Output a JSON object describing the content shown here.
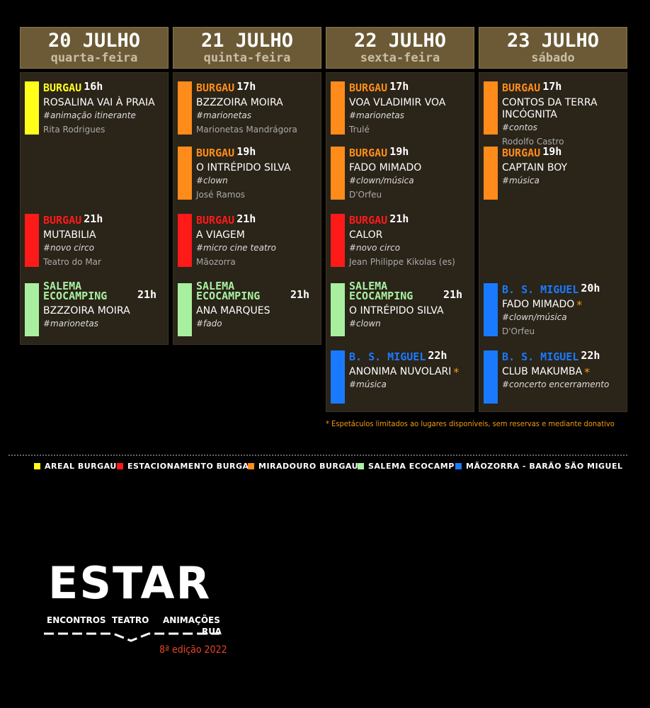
{
  "days": [
    {
      "date": "20 JULHO",
      "weekday": "quarta-feira",
      "events": [
        {
          "place": "BURGAU",
          "time": "16h",
          "title": "ROSALINA VAI À PRAIA",
          "tag": "#animação itinerante",
          "artist": "Rita Rodrigues",
          "color": "#ffff1a"
        },
        {
          "place": "BURGAU",
          "time": "21h",
          "title": "MUTABILIA",
          "tag": "#novo circo",
          "artist": "Teatro do Mar",
          "color": "#ff1a1a"
        },
        {
          "place": "SALEMA ECOCAMPING",
          "time": "21h",
          "title": "BZZZOIRA MOIRA",
          "tag": "#marionetas",
          "color": "#a8f0a0"
        }
      ]
    },
    {
      "date": "21 JULHO",
      "weekday": "quinta-feira",
      "events": [
        {
          "place": "BURGAU",
          "time": "17h",
          "title": "BZZZOIRA MOIRA",
          "tag": "#marionetas",
          "artist": "Marionetas Mandrágora",
          "color": "#ff8c1a"
        },
        {
          "place": "BURGAU",
          "time": "19h",
          "title": "O INTRÉPIDO SILVA",
          "tag": "#clown",
          "artist": "José Ramos",
          "color": "#ff8c1a"
        },
        {
          "place": "BURGAU",
          "time": "21h",
          "title": "A VIAGEM",
          "tag": "#micro cine teatro",
          "artist": "Mãozorra",
          "color": "#ff1a1a"
        },
        {
          "place": "SALEMA ECOCAMPING",
          "time": "21h",
          "title": "ANA MARQUES",
          "tag": "#fado",
          "color": "#a8f0a0"
        }
      ]
    },
    {
      "date": "22 JULHO",
      "weekday": "sexta-feira",
      "events": [
        {
          "place": "BURGAU",
          "time": "17h",
          "title": "VOA VLADIMIR VOA",
          "tag": "#marionetas",
          "artist": "Trulé",
          "color": "#ff8c1a"
        },
        {
          "place": "BURGAU",
          "time": "19h",
          "title": "FADO MIMADO",
          "tag": "#clown/música",
          "artist": "D'Orfeu",
          "color": "#ff8c1a"
        },
        {
          "place": "BURGAU",
          "time": "21h",
          "title": "CALOR",
          "tag": "#novo circo",
          "artist": "Jean Philippe Kikolas (es)",
          "color": "#ff1a1a"
        },
        {
          "place": "SALEMA ECOCAMPING",
          "time": "21h",
          "title": "O INTRÉPIDO SILVA",
          "tag": "#clown",
          "color": "#a8f0a0"
        },
        {
          "place": "B. S. MIGUEL",
          "time": "22h",
          "title": "ANONIMA NUVOLARI",
          "mark": "*",
          "tag": "#música",
          "color": "#1a7aff"
        }
      ]
    },
    {
      "date": "23 JULHO",
      "weekday": "sábado",
      "events": [
        {
          "place": "BURGAU",
          "time": "17h",
          "title": "CONTOS DA TERRA INCÓGNITA",
          "tag": "#contos",
          "artist": "Rodolfo Castro",
          "color": "#ff8c1a"
        },
        {
          "place": "BURGAU",
          "time": "19h",
          "title": "CAPTAIN BOY",
          "tag": "#música",
          "color": "#ff8c1a"
        },
        {
          "place": "B. S. MIGUEL",
          "time": "20h",
          "title": "FADO MIMADO",
          "mark": "*",
          "tag": "#clown/música",
          "artist": "D'Orfeu",
          "color": "#1a7aff"
        },
        {
          "place": "B. S. MIGUEL",
          "time": "22h",
          "title": "CLUB MAKUMBA",
          "mark": "*",
          "tag": "#concerto encerramento",
          "color": "#1a7aff"
        }
      ]
    }
  ],
  "footnote": "* Espetáculos limitados ao lugares disponíveis, sem reservas e mediante donativo",
  "legend": [
    {
      "label": "AREAL BURGAU",
      "color": "#ffff1a"
    },
    {
      "label": "ESTACIONAMENTO BURGAU",
      "color": "#ff1a1a"
    },
    {
      "label": "MIRADOURO BURGAU",
      "color": "#ff8c1a"
    },
    {
      "label": "SALEMA ECOCAMP",
      "color": "#a8f0a0"
    },
    {
      "label": "MÃOZORRA - BARÃO SÃO MIGUEL",
      "color": "#1a7aff"
    }
  ],
  "logo": {
    "name": "ESTAR",
    "words": [
      "ENCONTROS",
      "TEATRO",
      "ANIMAÇÕES",
      "RUA"
    ],
    "edition": "8ª edição 2022"
  }
}
